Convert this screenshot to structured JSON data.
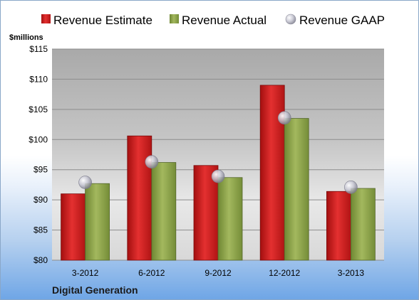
{
  "chart_data": {
    "type": "bar",
    "unit_label": "$millions",
    "company": "Digital Generation",
    "categories": [
      "3-2012",
      "6-2012",
      "9-2012",
      "12-2012",
      "3-2013"
    ],
    "series": [
      {
        "name": "Revenue Estimate",
        "kind": "bar",
        "color": "#d01c1c",
        "values": [
          91.0,
          100.6,
          95.7,
          109.0,
          91.4
        ]
      },
      {
        "name": "Revenue Actual",
        "kind": "bar",
        "color": "#8fa44a",
        "values": [
          92.7,
          96.2,
          93.7,
          103.5,
          91.9
        ]
      },
      {
        "name": "Revenue GAAP",
        "kind": "marker",
        "color": "#b8b8c8",
        "values": [
          92.9,
          96.3,
          93.9,
          103.6,
          92.1
        ]
      }
    ],
    "ylim": [
      80,
      115
    ],
    "yticks": [
      80,
      85,
      90,
      95,
      100,
      105,
      110,
      115
    ],
    "ytick_labels": [
      "$80",
      "$85",
      "$90",
      "$95",
      "$100",
      "$105",
      "$110",
      "$115"
    ],
    "grid": true,
    "legend_position": "top"
  }
}
